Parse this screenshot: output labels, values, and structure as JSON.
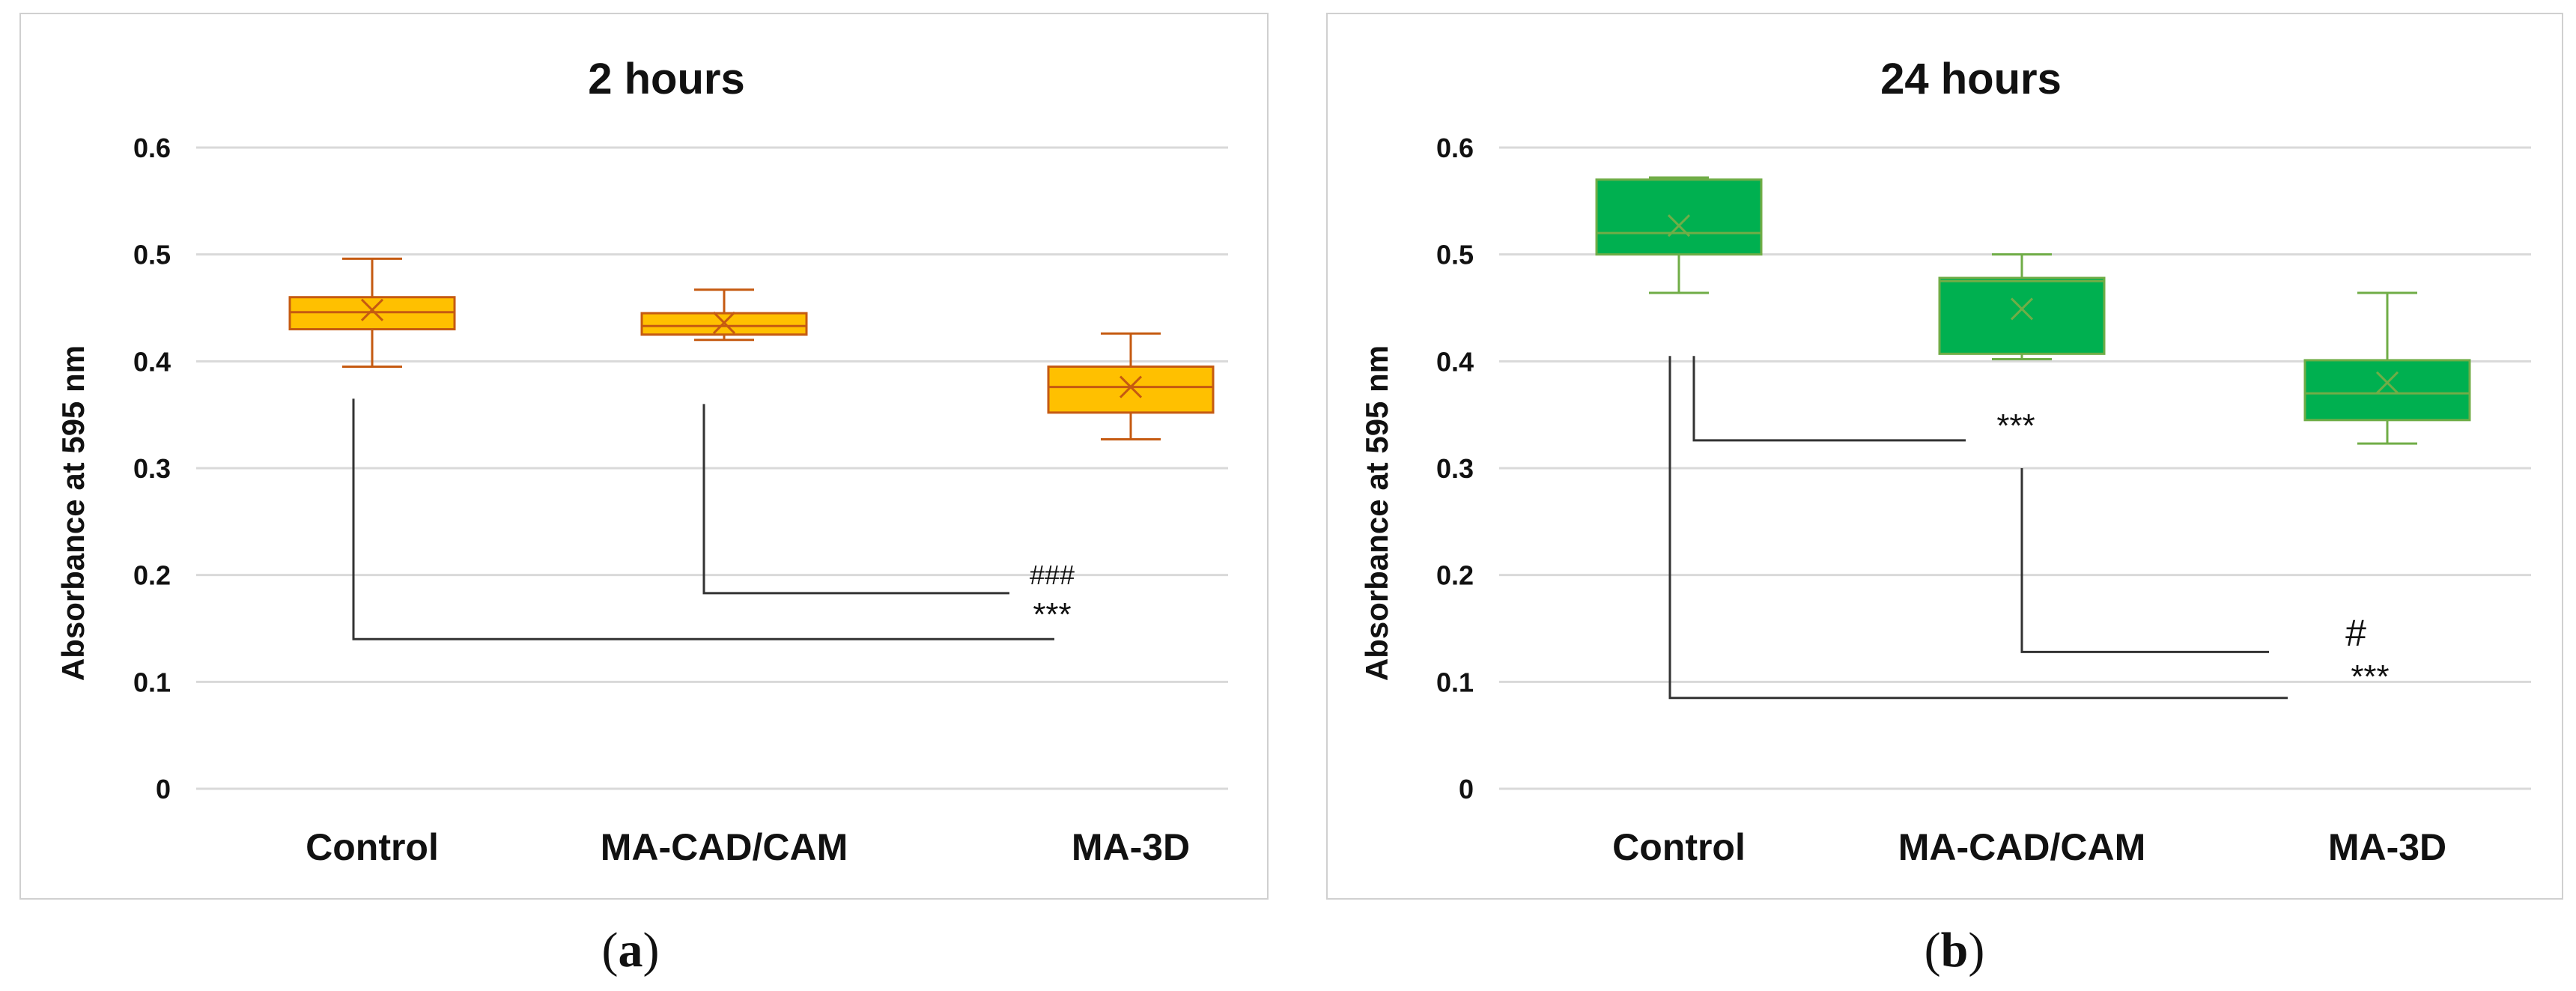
{
  "chart_data": [
    {
      "type": "box",
      "panel_label": "a",
      "title": "2 hours",
      "xlabel": "",
      "ylabel": "Absorbance at 595 nm",
      "ylim": [
        0,
        0.6
      ],
      "yticks": [
        "0",
        "0.1",
        "0.2",
        "0.3",
        "0.4",
        "0.5",
        "0.6"
      ],
      "categories": [
        "Control",
        "MA-CAD/CAM",
        "MA-3D"
      ],
      "colors": {
        "fill": "#ffc000",
        "stroke": "#c55a11"
      },
      "boxes": [
        {
          "min": 0.395,
          "q1": 0.43,
          "median": 0.446,
          "q3": 0.46,
          "max": 0.496,
          "mean": 0.448
        },
        {
          "min": 0.42,
          "q1": 0.425,
          "median": 0.433,
          "q3": 0.445,
          "max": 0.467,
          "mean": 0.436
        },
        {
          "min": 0.327,
          "q1": 0.352,
          "median": 0.376,
          "q3": 0.395,
          "max": 0.426,
          "mean": 0.376
        }
      ],
      "annotations": [
        {
          "label": "###",
          "from": "MA-CAD/CAM",
          "to": "MA-3D",
          "bracket_top": 0.36,
          "bracket_y": 0.183
        },
        {
          "label": "***",
          "from": "Control",
          "to": "MA-3D",
          "bracket_top": 0.365,
          "bracket_y": 0.14
        }
      ]
    },
    {
      "type": "box",
      "panel_label": "b",
      "title": "24 hours",
      "xlabel": "",
      "ylabel": "Absorbance at 595 nm",
      "ylim": [
        0,
        0.6
      ],
      "yticks": [
        "0",
        "0.1",
        "0.2",
        "0.3",
        "0.4",
        "0.5",
        "0.6"
      ],
      "categories": [
        "Control",
        "MA-CAD/CAM",
        "MA-3D"
      ],
      "colors": {
        "fill": "#00b050",
        "stroke": "#70ad47"
      },
      "boxes": [
        {
          "min": 0.464,
          "q1": 0.5,
          "median": 0.52,
          "q3": 0.57,
          "max": 0.572,
          "mean": 0.527
        },
        {
          "min": 0.402,
          "q1": 0.407,
          "median": 0.475,
          "q3": 0.478,
          "max": 0.5,
          "mean": 0.449
        },
        {
          "min": 0.323,
          "q1": 0.345,
          "median": 0.37,
          "q3": 0.401,
          "max": 0.464,
          "mean": 0.38
        }
      ],
      "annotations": [
        {
          "label": "***",
          "from": "Control",
          "to": "MA-CAD/CAM",
          "bracket_top": 0.405,
          "bracket_y": 0.326
        },
        {
          "label": "#",
          "from": "MA-CAD/CAM",
          "to": "MA-3D",
          "bracket_top": 0.3,
          "bracket_y": 0.128
        },
        {
          "label": "***",
          "from": "Control",
          "to": "MA-3D",
          "bracket_top": 0.405,
          "bracket_y": 0.085
        }
      ]
    }
  ]
}
